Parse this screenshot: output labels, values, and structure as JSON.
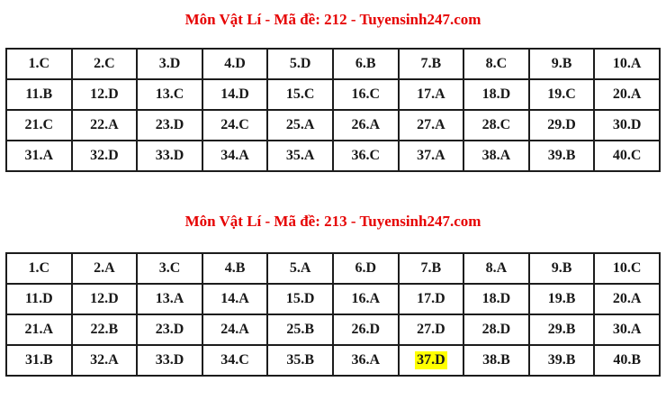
{
  "page": {
    "background": "#ffffff"
  },
  "colors": {
    "title_red": "#e60000",
    "cell_text": "#181818",
    "table_border": "#1c1c1c",
    "highlight_yellow": "#ffff00"
  },
  "sections": [
    {
      "title": "Môn Vật Lí - Mã đề: 212 - Tuyensinh247.com",
      "highlighted_answer": null,
      "rows": [
        [
          "1.C",
          "2.C",
          "3.D",
          "4.D",
          "5.D",
          "6.B",
          "7.B",
          "8.C",
          "9.B",
          "10.A"
        ],
        [
          "11.B",
          "12.D",
          "13.C",
          "14.D",
          "15.C",
          "16.C",
          "17.A",
          "18.D",
          "19.C",
          "20.A"
        ],
        [
          "21.C",
          "22.A",
          "23.D",
          "24.C",
          "25.A",
          "26.A",
          "27.A",
          "28.C",
          "29.D",
          "30.D"
        ],
        [
          "31.A",
          "32.D",
          "33.D",
          "34.A",
          "35.A",
          "36.C",
          "37.A",
          "38.A",
          "39.B",
          "40.C"
        ]
      ]
    },
    {
      "title": "Môn Vật Lí - Mã đề: 213 - Tuyensinh247.com",
      "highlighted_answer": "37.D",
      "rows": [
        [
          "1.C",
          "2.A",
          "3.C",
          "4.B",
          "5.A",
          "6.D",
          "7.B",
          "8.A",
          "9.B",
          "10.C"
        ],
        [
          "11.D",
          "12.D",
          "13.A",
          "14.A",
          "15.D",
          "16.A",
          "17.D",
          "18.D",
          "19.B",
          "20.A"
        ],
        [
          "21.A",
          "22.B",
          "23.D",
          "24.A",
          "25.B",
          "26.D",
          "27.D",
          "28.D",
          "29.B",
          "30.A"
        ],
        [
          "31.B",
          "32.A",
          "33.D",
          "34.C",
          "35.B",
          "36.A",
          "37.D",
          "38.B",
          "39.B",
          "40.B"
        ]
      ]
    }
  ]
}
